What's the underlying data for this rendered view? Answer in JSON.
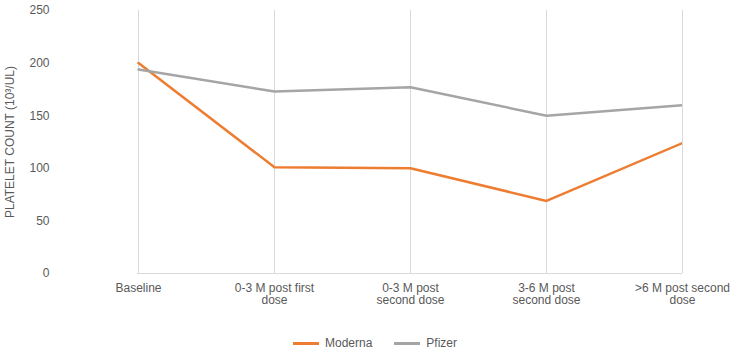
{
  "chart_data": {
    "type": "line",
    "y_label": "PLATELET COUNT (10³/UL)",
    "categories": [
      "Baseline",
      "0-3 M post first dose",
      "0-3 M post second dose",
      "3-6 M post second dose",
      ">6 M post second dose"
    ],
    "series": [
      {
        "name": "Moderna",
        "color": "#ed7d31",
        "values": [
          200,
          101,
          100,
          69,
          124
        ]
      },
      {
        "name": "Pfizer",
        "color": "#a5a5a5",
        "values": [
          194,
          173,
          177,
          150,
          160
        ]
      }
    ],
    "ylim": [
      0,
      250
    ],
    "yticks": [
      0,
      50,
      100,
      150,
      200,
      250
    ],
    "grid": true,
    "legend": "bottom"
  }
}
